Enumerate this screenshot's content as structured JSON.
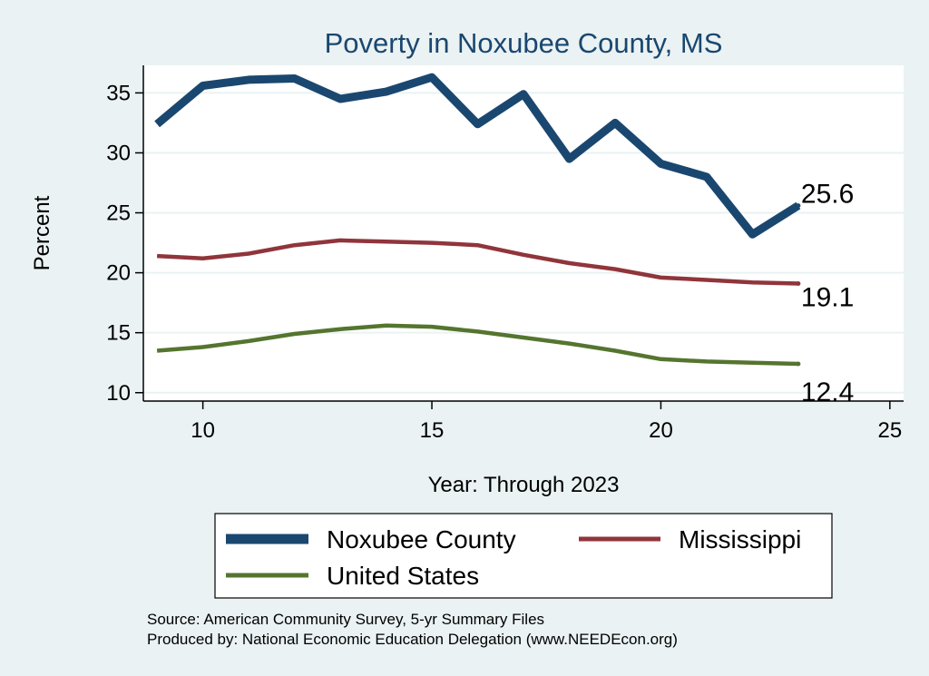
{
  "chart_data": {
    "type": "line",
    "title": "Poverty in Noxubee County, MS",
    "xlabel": "Year: Through 2023",
    "ylabel": "Percent",
    "xlim": [
      8.7,
      25.3
    ],
    "ylim": [
      9.3,
      37.3
    ],
    "xticks": [
      10,
      15,
      20,
      25
    ],
    "yticks": [
      10,
      15,
      20,
      25,
      30,
      35
    ],
    "x": [
      9,
      10,
      11,
      12,
      13,
      14,
      15,
      16,
      17,
      18,
      19,
      20,
      21,
      22,
      23
    ],
    "series": [
      {
        "name": "Noxubee County",
        "color": "#1a476f",
        "values": [
          32.4,
          35.6,
          36.1,
          36.2,
          34.5,
          35.1,
          36.3,
          32.4,
          34.9,
          29.5,
          32.5,
          29.1,
          28.0,
          23.2,
          25.6
        ],
        "end_label": "25.6"
      },
      {
        "name": "Mississippi",
        "color": "#90353b",
        "values": [
          21.4,
          21.2,
          21.6,
          22.3,
          22.7,
          22.6,
          22.5,
          22.3,
          21.5,
          20.8,
          20.3,
          19.6,
          19.4,
          19.2,
          19.1
        ],
        "end_label": "19.1"
      },
      {
        "name": "United States",
        "color": "#55752f",
        "values": [
          13.5,
          13.8,
          14.3,
          14.9,
          15.3,
          15.6,
          15.5,
          15.1,
          14.6,
          14.1,
          13.5,
          12.8,
          12.6,
          12.5,
          12.4
        ],
        "end_label": "12.4"
      }
    ],
    "grid": true,
    "legend_position": "bottom",
    "source": "Source: American Community Survey, 5-yr Summary Files",
    "producer": "Produced by: National Economic Education Delegation (www.NEEDEcon.org)"
  }
}
